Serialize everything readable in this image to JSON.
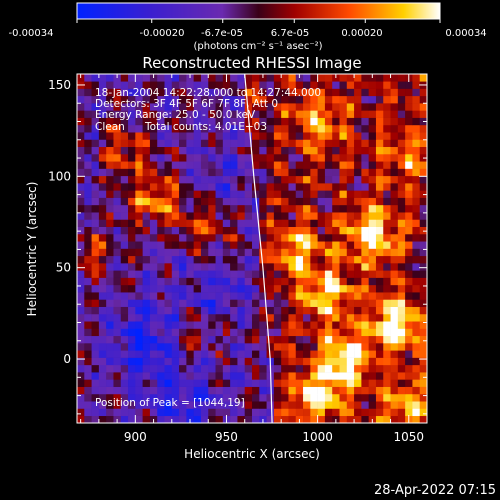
{
  "chart_data": {
    "type": "heatmap",
    "title": "Reconstructed RHESSI Image",
    "xlabel": "Heliocentric X (arcsec)",
    "ylabel": "Heliocentric Y (arcsec)",
    "xlim": [
      868,
      1060
    ],
    "ylim": [
      -35,
      156
    ],
    "x_ticks": [
      900,
      950,
      1000,
      1050
    ],
    "y_ticks": [
      0,
      50,
      100,
      150
    ],
    "x_tick_labels": [
      "900",
      "950",
      "1000",
      "1050"
    ],
    "y_tick_labels": [
      "0",
      "50",
      "100",
      "150"
    ],
    "colorbar": {
      "range": [
        -0.00034,
        0.00034
      ],
      "tick_labels": [
        "-0.00034",
        "-0.00020",
        "-6.7e-05",
        "6.7e-05",
        "0.00020",
        "0.00034"
      ],
      "tick_values": [
        -0.00034,
        -0.0002,
        -6.7e-05,
        6.7e-05,
        0.0002,
        0.00034
      ],
      "unit_label": "(photons cm⁻² s⁻¹ asec⁻²)",
      "colormap": "blue-purple-red-yellow-white"
    },
    "limb_curve_x": [
      [
        960,
        156
      ],
      [
        965,
        100
      ],
      [
        970,
        50
      ],
      [
        974,
        0
      ],
      [
        975,
        -35
      ]
    ],
    "annotations": {
      "time_range": "18-Jan-2004 14:22:28.000 to 14:27:44.000",
      "detectors": "Detectors: 3F 4F 5F 6F 7F 8F, Att 0",
      "energy_range": "Energy Range: 25.0 - 50.0 keV",
      "method": "Clean",
      "total_counts": "Total counts: 4.01E+03",
      "peak": "Position of Peak = [1044,19]"
    },
    "peak_position": [
      1044,
      19
    ],
    "pixel_grid": {
      "nx": 48,
      "ny": 48,
      "bright_regions": [
        {
          "x": 1044,
          "y": 19,
          "strength": 1.0
        },
        {
          "x": 1030,
          "y": 68,
          "strength": 0.9
        },
        {
          "x": 1015,
          "y": 0,
          "strength": 0.85
        },
        {
          "x": 1005,
          "y": 35,
          "strength": 0.7
        },
        {
          "x": 990,
          "y": 60,
          "strength": 0.65
        },
        {
          "x": 1000,
          "y": -20,
          "strength": 0.75
        },
        {
          "x": 1050,
          "y": -25,
          "strength": 0.6
        },
        {
          "x": 1048,
          "y": 110,
          "strength": 0.45
        },
        {
          "x": 912,
          "y": 88,
          "strength": 0.8
        },
        {
          "x": 895,
          "y": 115,
          "strength": 0.6
        },
        {
          "x": 940,
          "y": 72,
          "strength": 0.55
        },
        {
          "x": 1000,
          "y": 130,
          "strength": 0.55
        },
        {
          "x": 875,
          "y": 60,
          "strength": 0.45
        },
        {
          "x": 930,
          "y": 10,
          "strength": 0.35
        }
      ],
      "dark_regions": [
        {
          "x": 905,
          "y": 10,
          "strength": 0.6
        },
        {
          "x": 925,
          "y": -20,
          "strength": 0.45
        },
        {
          "x": 945,
          "y": 40,
          "strength": 0.3
        },
        {
          "x": 950,
          "y": 100,
          "strength": 0.25
        }
      ]
    }
  },
  "footer": {
    "date": "28-Apr-2022 07:15"
  }
}
